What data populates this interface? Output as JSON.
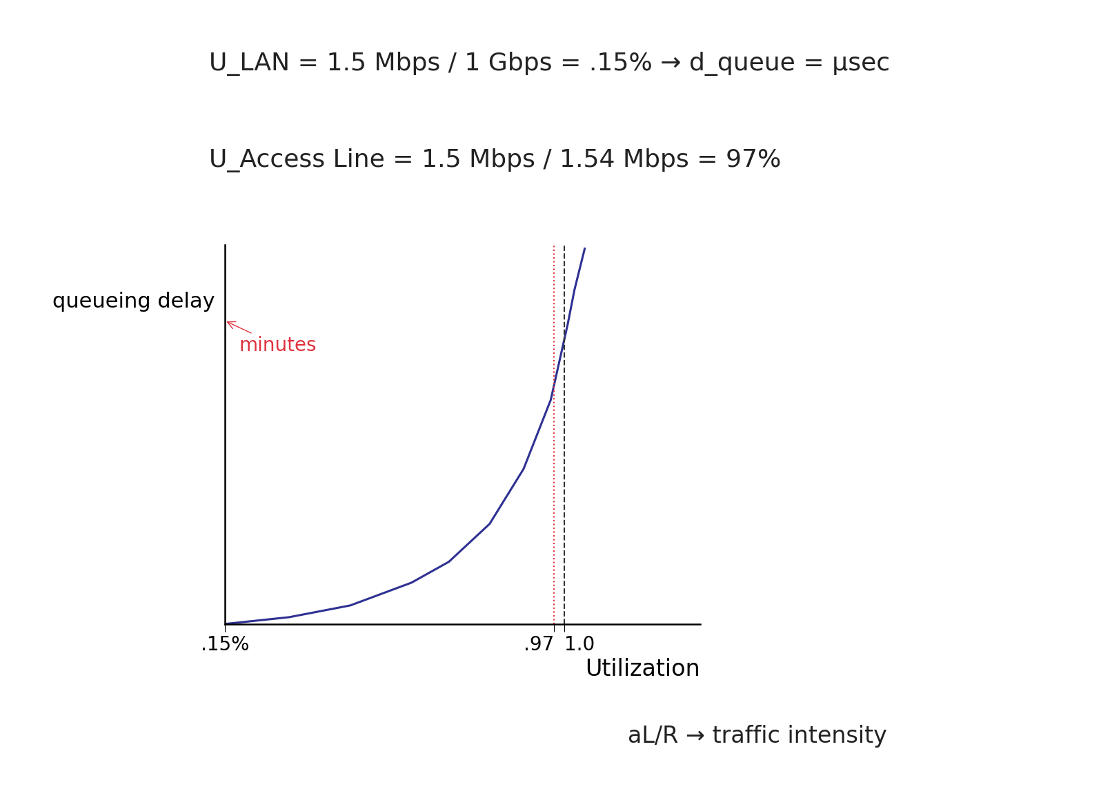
{
  "chart_data": {
    "type": "line",
    "equations": [
      "U_LAN = 1.5 Mbps / 1 Gbps = .15% → d_queue = μsec",
      "U_Access Line = 1.5 Mbps / 1.54 Mbps = 97%"
    ],
    "x": [
      0,
      0.19,
      0.37,
      0.55,
      0.66,
      0.78,
      0.88,
      0.96,
      1.01,
      1.03,
      1.06
    ],
    "values": [
      0,
      0.18,
      0.49,
      1.09,
      1.64,
      2.64,
      4.09,
      5.91,
      7.91,
      8.82,
      9.9
    ],
    "color": "#2e3192",
    "xlabel": "Utilization",
    "ylabel": "queueing delay",
    "xlim": [
      0,
      1.4
    ],
    "ylim": [
      0,
      10
    ],
    "xticks": [
      {
        "value": 0.0015,
        "label": ".15%"
      },
      {
        "value": 0.97,
        "label": ".97"
      },
      {
        "value": 1.0,
        "label": "1.0"
      }
    ],
    "yticks": [],
    "tick_labels": "x",
    "grid": false,
    "annotations": [
      {
        "text": "minutes",
        "x": 0,
        "y": 8.0,
        "color": "#e0333f"
      },
      {
        "text": "aL/R → traffic intensity"
      }
    ]
  }
}
